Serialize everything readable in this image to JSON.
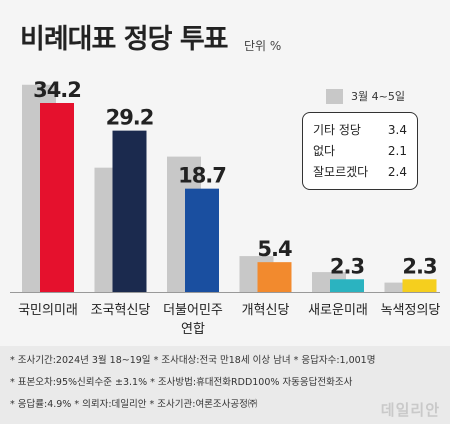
{
  "title": "비례대표 정당 투표",
  "unit": "단위 %",
  "legend": {
    "label": "3월 4~5일",
    "color": "#c8c8c8"
  },
  "others_box": [
    {
      "label": "기타 정당",
      "value": "3.4"
    },
    {
      "label": "없다",
      "value": "2.1"
    },
    {
      "label": "잘모르겠다",
      "value": "2.4"
    }
  ],
  "chart_data": {
    "type": "bar",
    "categories": [
      "국민의미래",
      "조국혁신당",
      "더불어민주 연합",
      "개혁신당",
      "새로운미래",
      "녹색정의당"
    ],
    "series": [
      {
        "name": "3월 4~5일",
        "values": [
          37.5,
          22.5,
          24.5,
          6.5,
          3.6,
          1.7
        ],
        "color": "#c8c8c8"
      },
      {
        "name": "",
        "values": [
          34.2,
          29.2,
          18.7,
          5.4,
          2.3,
          2.3
        ],
        "labels": [
          "34.2",
          "29.2",
          "18.7",
          "5.4",
          "2.3",
          "2.3"
        ]
      }
    ],
    "bar_colors": [
      "#e5112d",
      "#1b2a4e",
      "#1a4fa0",
      "#f28a2e",
      "#2bb3c0",
      "#f5cf1e"
    ],
    "ylim": [
      0,
      38
    ]
  },
  "footer": {
    "line1": "* 조사기간:2024년 3월 18~19일  * 조사대상:전국 만18세 이상 남녀  * 응답자수:1,001명",
    "line2": "* 표본오차:95%신뢰수준 ±3.1%  * 조사방법:휴대전화RDD100% 자동응답전화조사",
    "line3": "* 응답률:4.9%  * 의뢰자:데일리안  * 조사기관:여론조사공정㈜"
  },
  "watermark": "데일리안"
}
